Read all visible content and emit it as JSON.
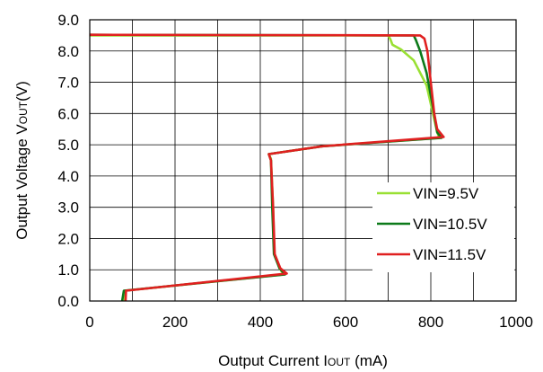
{
  "chart_data": {
    "type": "line",
    "title": "",
    "xlabel": {
      "main": "Output Current I",
      "sub": "OUT",
      "unit": " (mA)"
    },
    "ylabel": {
      "main": "Output Voltage V",
      "sub": "OUT",
      "unit": "(V)"
    },
    "xlim": [
      0,
      1000
    ],
    "ylim": [
      0,
      9
    ],
    "x_ticks": [
      "0",
      "200",
      "400",
      "600",
      "800",
      "1000"
    ],
    "y_ticks": [
      "0.0",
      "1.0",
      "2.0",
      "3.0",
      "4.0",
      "5.0",
      "6.0",
      "7.0",
      "8.0",
      "9.0"
    ],
    "grid": true,
    "legend_position": "bottom-right",
    "series": [
      {
        "name": "VIN=9.5V",
        "color": "#99e033",
        "points": [
          [
            0,
            8.5
          ],
          [
            700,
            8.5
          ],
          [
            705,
            8.38
          ],
          [
            710,
            8.2
          ],
          [
            730,
            8.05
          ],
          [
            760,
            7.7
          ],
          [
            790,
            6.9
          ],
          [
            805,
            6.0
          ],
          [
            815,
            5.4
          ],
          [
            820,
            5.22
          ],
          [
            545,
            4.95
          ],
          [
            420,
            4.7
          ],
          [
            425,
            4.55
          ],
          [
            430,
            3.0
          ],
          [
            433,
            1.5
          ],
          [
            445,
            1.05
          ],
          [
            455,
            0.85
          ],
          [
            83,
            0.33
          ],
          [
            82,
            0.0
          ]
        ]
      },
      {
        "name": "VIN=10.5V",
        "color": "#0d7a1a",
        "points": [
          [
            0,
            8.52
          ],
          [
            760,
            8.5
          ],
          [
            765,
            8.35
          ],
          [
            775,
            8.0
          ],
          [
            790,
            7.3
          ],
          [
            805,
            6.2
          ],
          [
            815,
            5.4
          ],
          [
            825,
            5.22
          ],
          [
            545,
            4.95
          ],
          [
            420,
            4.7
          ],
          [
            425,
            4.5
          ],
          [
            428,
            3.0
          ],
          [
            432,
            1.5
          ],
          [
            445,
            1.05
          ],
          [
            458,
            0.85
          ],
          [
            80,
            0.33
          ],
          [
            76,
            0.0
          ]
        ]
      },
      {
        "name": "VIN=11.5V",
        "color": "#e02020",
        "points": [
          [
            0,
            8.52
          ],
          [
            775,
            8.5
          ],
          [
            785,
            8.4
          ],
          [
            792,
            8.0
          ],
          [
            800,
            7.0
          ],
          [
            808,
            6.0
          ],
          [
            815,
            5.5
          ],
          [
            830,
            5.25
          ],
          [
            545,
            4.95
          ],
          [
            420,
            4.7
          ],
          [
            425,
            4.5
          ],
          [
            430,
            3.0
          ],
          [
            434,
            1.5
          ],
          [
            447,
            1.05
          ],
          [
            462,
            0.88
          ],
          [
            85,
            0.33
          ],
          [
            84,
            0.0
          ]
        ]
      }
    ]
  }
}
